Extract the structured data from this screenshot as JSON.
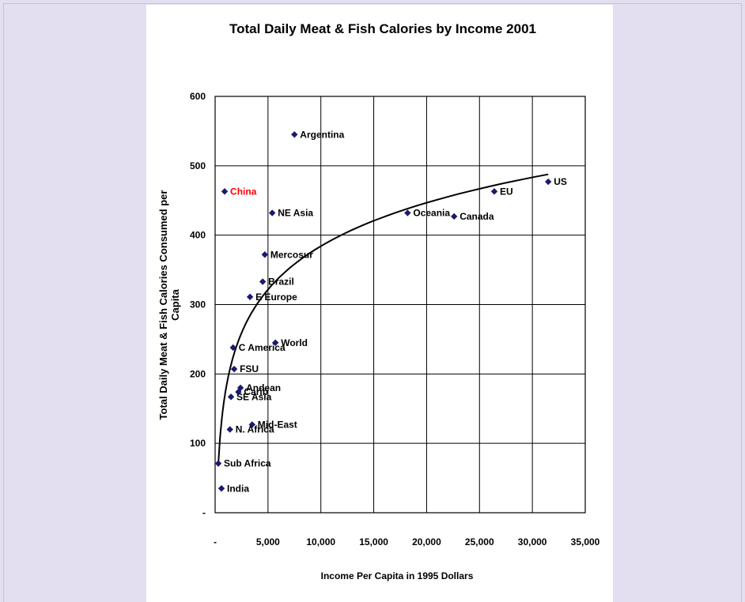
{
  "chart_data": {
    "type": "scatter",
    "title": "Total Daily Meat & Fish Calories by Income 2001",
    "xlabel": "Income Per Capita in 1995 Dollars",
    "ylabel": [
      "Total Daily Meat & Fish Calories Consumed per",
      "Capita"
    ],
    "xlim": [
      0,
      35000
    ],
    "ylim": [
      0,
      600
    ],
    "x_ticks": [
      0,
      5000,
      10000,
      15000,
      20000,
      25000,
      30000,
      35000
    ],
    "x_tick_labels": [
      "-",
      "5,000",
      "10,000",
      "15,000",
      "20,000",
      "25,000",
      "30,000",
      "35,000"
    ],
    "y_ticks": [
      0,
      100,
      200,
      300,
      400,
      500,
      600
    ],
    "y_tick_labels": [
      "-",
      "100",
      "200",
      "300",
      "400",
      "500",
      "600"
    ],
    "grid": true,
    "marker_color": "#1a1a6e",
    "highlight_color": "#ff0000",
    "points": [
      {
        "label": "US",
        "x": 31500,
        "y": 477
      },
      {
        "label": "EU",
        "x": 26400,
        "y": 463
      },
      {
        "label": "Canada",
        "x": 22600,
        "y": 427
      },
      {
        "label": "Oceania",
        "x": 18200,
        "y": 432
      },
      {
        "label": "Argentina",
        "x": 7500,
        "y": 545
      },
      {
        "label": "China",
        "x": 900,
        "y": 463,
        "highlight": true
      },
      {
        "label": "NE Asia",
        "x": 5400,
        "y": 432
      },
      {
        "label": "Mercosur",
        "x": 4700,
        "y": 372
      },
      {
        "label": "Brazil",
        "x": 4500,
        "y": 333
      },
      {
        "label": "E Europe",
        "x": 3300,
        "y": 311
      },
      {
        "label": "World",
        "x": 5700,
        "y": 245
      },
      {
        "label": "C America",
        "x": 1700,
        "y": 238
      },
      {
        "label": "FSU",
        "x": 1800,
        "y": 207
      },
      {
        "label": "Andean",
        "x": 2400,
        "y": 180
      },
      {
        "label": "Carib",
        "x": 2200,
        "y": 174
      },
      {
        "label": "SE Asia",
        "x": 1500,
        "y": 167
      },
      {
        "label": "Mid-East",
        "x": 3500,
        "y": 127
      },
      {
        "label": "N. Africa",
        "x": 1400,
        "y": 120
      },
      {
        "label": "Sub Africa",
        "x": 300,
        "y": 71
      },
      {
        "label": "India",
        "x": 600,
        "y": 35
      }
    ],
    "trend": {
      "type": "logarithmic",
      "color": "#000000"
    }
  }
}
